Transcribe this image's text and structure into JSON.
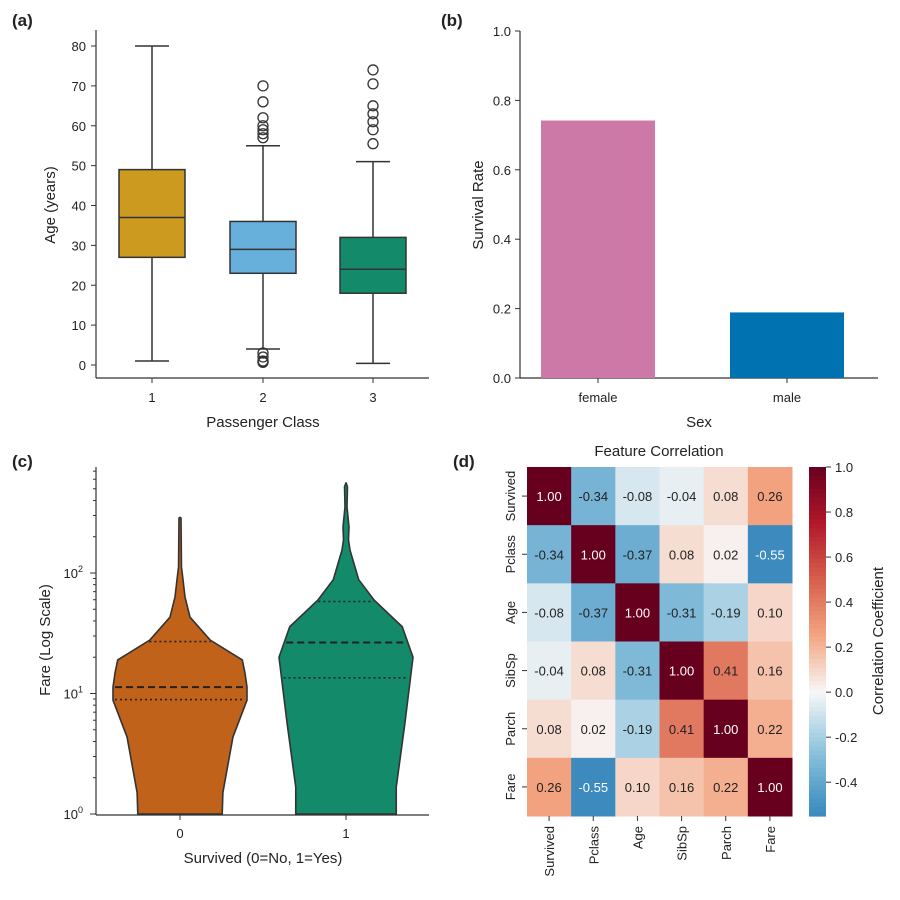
{
  "chart_data": [
    {
      "panel_label": "(a)",
      "type": "box",
      "xlabel": "Passenger Class",
      "ylabel": "Age (years)",
      "categories": [
        "1",
        "2",
        "3"
      ],
      "ylim": [
        -3,
        83
      ],
      "yticks": [
        0,
        10,
        20,
        30,
        40,
        50,
        60,
        70,
        80
      ],
      "grid": false,
      "boxes": [
        {
          "category": "1",
          "whisker_low": 1,
          "q1": 27,
          "median": 37,
          "q3": 49,
          "whisker_high": 80,
          "outliers": [],
          "color": "#CC9A1F"
        },
        {
          "category": "2",
          "whisker_low": 4,
          "q1": 23,
          "median": 29,
          "q3": 36,
          "whisker_high": 55,
          "outliers": [
            0.67,
            0.83,
            1,
            2,
            3,
            57,
            58,
            59,
            60,
            62,
            66,
            70
          ],
          "color": "#67B0DC"
        },
        {
          "category": "3",
          "whisker_low": 0.42,
          "q1": 18,
          "median": 24,
          "q3": 32,
          "whisker_high": 51,
          "outliers": [
            55.5,
            59,
            61,
            63,
            65,
            70.5,
            74
          ],
          "color": "#138A6A"
        }
      ]
    },
    {
      "panel_label": "(b)",
      "type": "bar",
      "xlabel": "Sex",
      "ylabel": "Survival Rate",
      "categories": [
        "female",
        "male"
      ],
      "values": [
        0.742,
        0.189
      ],
      "colors": [
        "#CC79A7",
        "#0072B2"
      ],
      "ylim": [
        0,
        1.0
      ],
      "yticks": [
        "0.0",
        "0.2",
        "0.4",
        "0.6",
        "0.8",
        "1.0"
      ],
      "grid": false
    },
    {
      "panel_label": "(c)",
      "type": "violin",
      "xlabel": "Survived (0=No, 1=Yes)",
      "ylabel": "Fare (Log Scale)",
      "yscale": "log",
      "ylim": [
        1,
        760
      ],
      "yticks": [
        {
          "base": "10",
          "exp": "0"
        },
        {
          "base": "10",
          "exp": "1"
        },
        {
          "base": "10",
          "exp": "2"
        }
      ],
      "categories": [
        "0",
        "1"
      ],
      "grid": false,
      "violins": [
        {
          "category": "0",
          "color": "#C0621A",
          "q1": 8.9,
          "median": 11.3,
          "q3": 27,
          "density_profile": [
            [
              1,
              0.63
            ],
            [
              1.5,
              0.64
            ],
            [
              4.35,
              0.79
            ],
            [
              8.8,
              1
            ],
            [
              11.3,
              1
            ],
            [
              14.8,
              0.97
            ],
            [
              19,
              0.93
            ],
            [
              27.8,
              0.45
            ],
            [
              43,
              0.15
            ],
            [
              63,
              0.075
            ],
            [
              88,
              0.045
            ],
            [
              112,
              0.022
            ],
            [
              286,
              0.015
            ],
            [
              290,
              0
            ]
          ]
        },
        {
          "category": "1",
          "color": "#138A6A",
          "q1": 13.5,
          "median": 26.5,
          "q3": 58,
          "density_profile": [
            [
              1,
              0.75
            ],
            [
              1.67,
              0.75
            ],
            [
              5.7,
              0.88
            ],
            [
              20,
              1
            ],
            [
              35.8,
              0.84
            ],
            [
              59.6,
              0.42
            ],
            [
              88,
              0.19
            ],
            [
              155,
              0.06
            ],
            [
              189,
              0.037
            ],
            [
              240,
              0.045
            ],
            [
              354,
              0.015
            ],
            [
              520,
              0.022
            ],
            [
              560,
              0
            ]
          ]
        }
      ]
    },
    {
      "panel_label": "(d)",
      "type": "heatmap",
      "title": "Feature Correlation",
      "labels": [
        "Survived",
        "Pclass",
        "Age",
        "SibSp",
        "Parch",
        "Fare"
      ],
      "matrix": [
        [
          1.0,
          -0.34,
          -0.08,
          -0.04,
          0.08,
          0.26
        ],
        [
          -0.34,
          1.0,
          -0.37,
          0.08,
          0.02,
          -0.55
        ],
        [
          -0.08,
          -0.37,
          1.0,
          -0.31,
          -0.19,
          0.1
        ],
        [
          -0.04,
          0.08,
          -0.31,
          1.0,
          0.41,
          0.16
        ],
        [
          0.08,
          0.02,
          -0.19,
          0.41,
          1.0,
          0.22
        ],
        [
          0.26,
          -0.55,
          0.1,
          0.16,
          0.22,
          1.0
        ]
      ],
      "colormap": "RdBu_r",
      "center": 0,
      "vmin": -0.55,
      "vmax": 1.0,
      "colorbar_label": "Correlation Coefficient",
      "colorbar_ticks": [
        "-0.4",
        "-0.2",
        "0.0",
        "0.2",
        "0.4",
        "0.6",
        "0.8",
        "1.0"
      ]
    }
  ]
}
